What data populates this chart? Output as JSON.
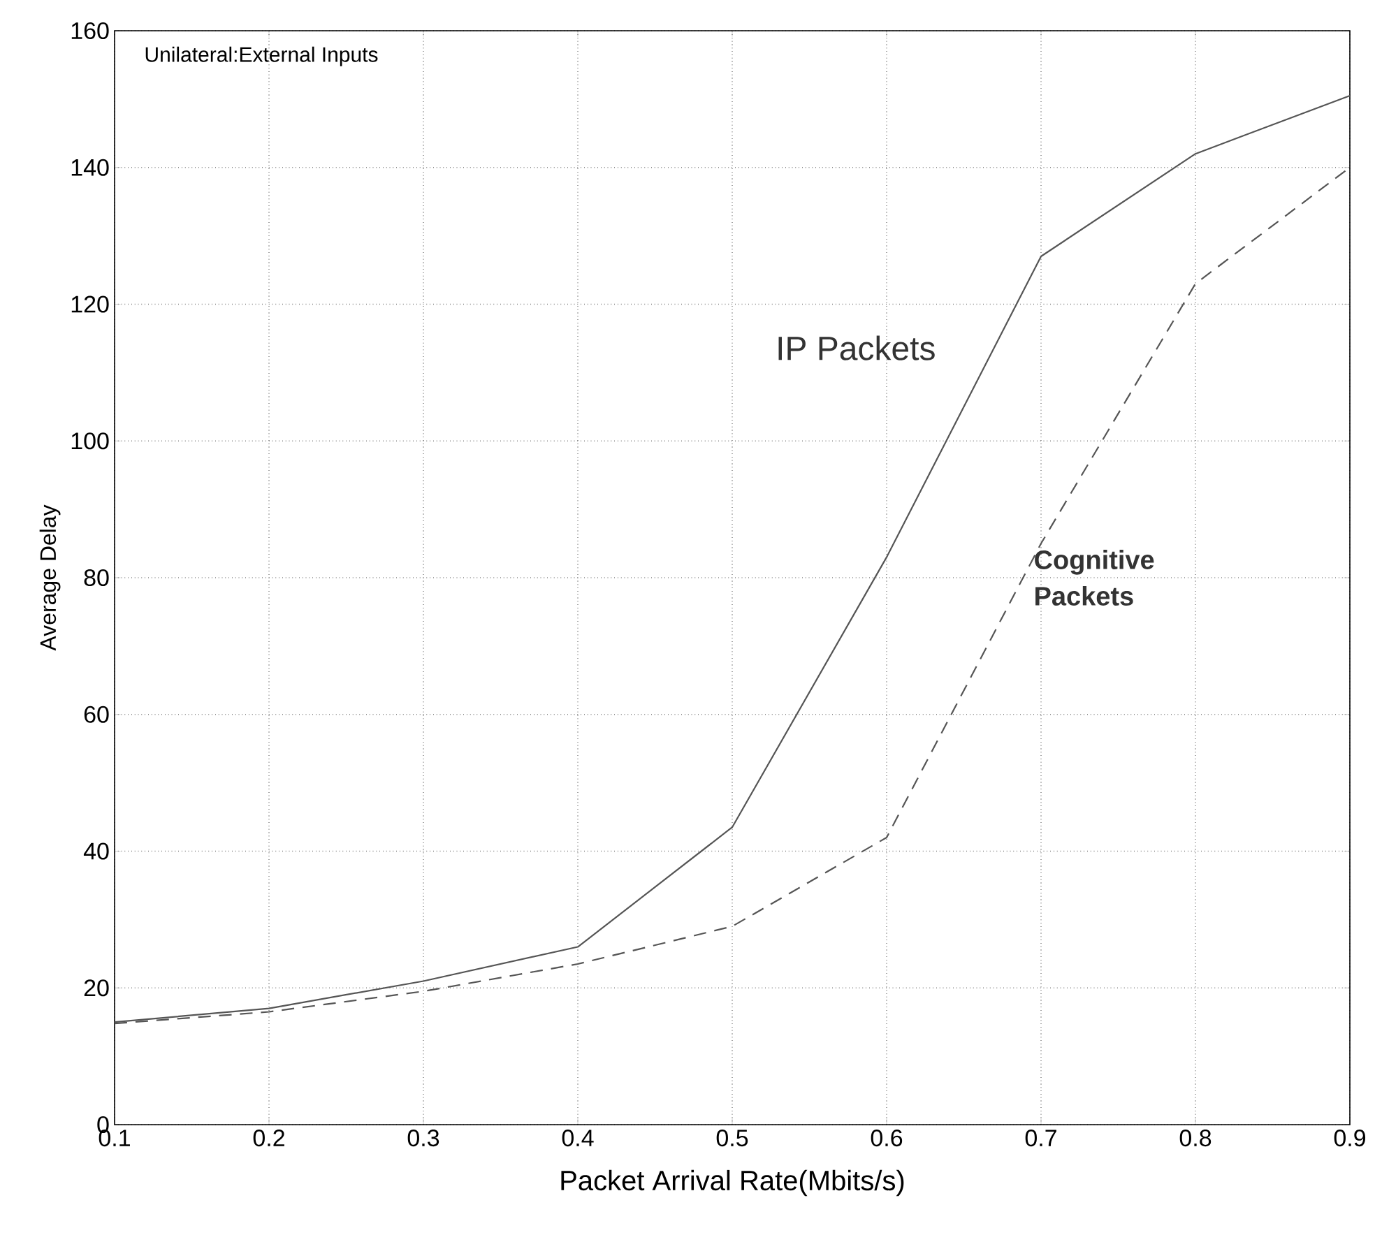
{
  "chart_data": {
    "type": "line",
    "xlabel": "Packet Arrival Rate(Mbits/s)",
    "ylabel": "Average Delay",
    "annotations": [
      "Unilateral:External Inputs"
    ],
    "x": [
      0.1,
      0.2,
      0.3,
      0.4,
      0.5,
      0.6,
      0.7,
      0.8,
      0.9
    ],
    "series": [
      {
        "name": "IP Packets",
        "color": "#555555",
        "line_style": "solid",
        "values": [
          15,
          17,
          21,
          26,
          43.5,
          83,
          127,
          142,
          150.5
        ]
      },
      {
        "name": "Cognitive Packets",
        "color": "#555555",
        "line_style": "dashed",
        "values": [
          14.8,
          16.5,
          19.5,
          23.5,
          29,
          42,
          85,
          123,
          140
        ]
      }
    ],
    "xlim": [
      0.1,
      0.9
    ],
    "ylim": [
      0,
      160
    ],
    "xticks": [
      0.1,
      0.2,
      0.3,
      0.4,
      0.5,
      0.6,
      0.7,
      0.8,
      0.9
    ],
    "yticks": [
      0,
      20,
      40,
      60,
      80,
      100,
      120,
      140,
      160
    ],
    "grid": true,
    "marker": "none"
  }
}
